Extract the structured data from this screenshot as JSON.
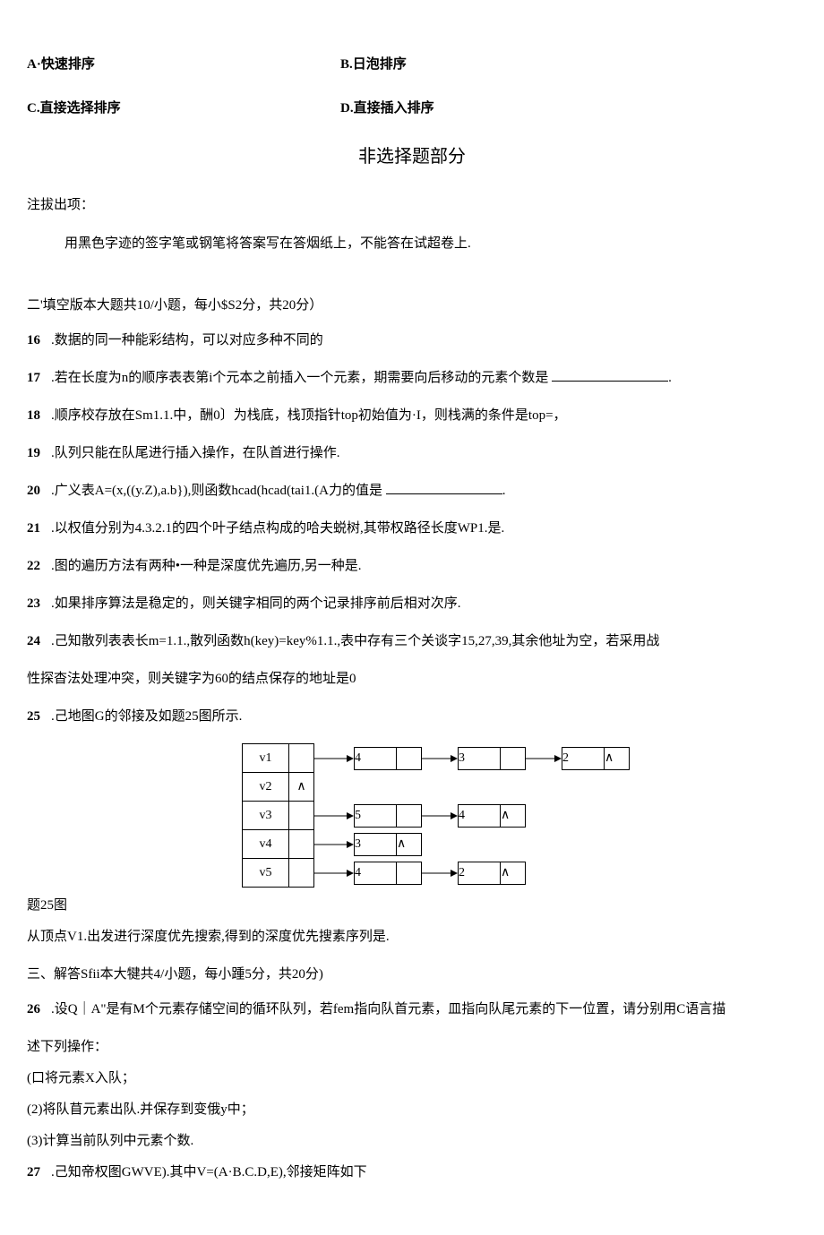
{
  "options": {
    "a": "A·快速排序",
    "b": "B.日泡排序",
    "c": "C.直接选择排序",
    "d": "D.直接插入排序"
  },
  "section_title": "非选择题部分",
  "instruction": {
    "header": "注拔出项：",
    "body": "用黑色字迹的签字笔或钢笔将答案写在答烟纸上，不能答在试超卷上."
  },
  "part2_heading": "二'填空版本大题共10/小题，每小$S2分，共20分）",
  "q16": {
    "num": "16",
    "text": ".数据的同一种能彩结构，可以对应多种不同的"
  },
  "q17": {
    "num": "17",
    "text_before": ".若在长度为n的顺序表表第i个元本之前插入一个元素，期需要向后移动的元素个数是 ",
    "text_after": "."
  },
  "q18": {
    "num": "18",
    "text": ".顺序校存放在Sm1.1.中，酬0〕为栈底，栈顶指针top初始值为·I，则栈满的条件是top=，"
  },
  "q19": {
    "num": "19",
    "text": ".队列只能在队尾进行插入操作，在队首进行操作."
  },
  "q20": {
    "num": "20",
    "text_before": ".广义表A=(x,((y.Z),a.b}),则函数hcad(hcad(tai1.(A力的值是 ",
    "text_after": "."
  },
  "q21": {
    "num": "21",
    "text": ".以权值分别为4.3.2.1的四个叶子结点构成的哈夫蜕树,其带权路径长度WP1.是."
  },
  "q22": {
    "num": "22",
    "text": ".图的遍历方法有两种•一种是深度优先遍历,另一种是."
  },
  "q23": {
    "num": "23",
    "text": ".如果排序算法是稳定的，则关键字相同的两个记录排序前后相对次序."
  },
  "q24": {
    "num": "24",
    "line1": ".己知散列表表长m=1.1.,散列函数h(key)=key%1.1.,表中存有三个关谈字15,27,39,其余他址为空，若采用战",
    "line2": "性探杳法处理冲突，则关键字为60的结点保存的地址是0"
  },
  "q25": {
    "num": "25",
    "text": ".己地图G的邻接及如题25图所示.",
    "caption": "题25图",
    "followup": "从顶点V1.出发进行深度优先搜索,得到的深度优先搜素序列是."
  },
  "adjacency": {
    "vertices": [
      "v1",
      "v2",
      "v3",
      "v4",
      "v5"
    ],
    "rows": [
      {
        "hasList": true,
        "nodes": [
          "4",
          "3",
          "2"
        ],
        "terminator": "∧"
      },
      {
        "hasList": false,
        "ptr": "∧"
      },
      {
        "hasList": true,
        "nodes": [
          "5",
          "4"
        ],
        "terminator": "∧"
      },
      {
        "hasList": true,
        "nodes": [
          "3"
        ],
        "terminator": "∧"
      },
      {
        "hasList": true,
        "nodes": [
          "4",
          "2"
        ],
        "terminator": "∧"
      }
    ],
    "colors": {
      "border": "#000000",
      "bg": "#ffffff"
    }
  },
  "part3_heading": "三、解答Sfii本大犍共4/小题，每小踵5分，共20分)",
  "q26": {
    "num": "26",
    "line1": ".设Q｜A\"是有M个元素存储空间的循环队列，若fem指向队首元素，皿指向队尾元素的下一位置，请分别用C语言描",
    "line2": "述下列操作：",
    "sub1": "(口将元素X入队；",
    "sub2": "(2)将队苜元素出队.并保存到变俄y中；",
    "sub3": "(3)计算当前队列中元素个数."
  },
  "q27": {
    "num": "27",
    "text": ".己知帝权图GWVE).其中V=(A·B.C.D,E),邻接矩阵如下"
  }
}
